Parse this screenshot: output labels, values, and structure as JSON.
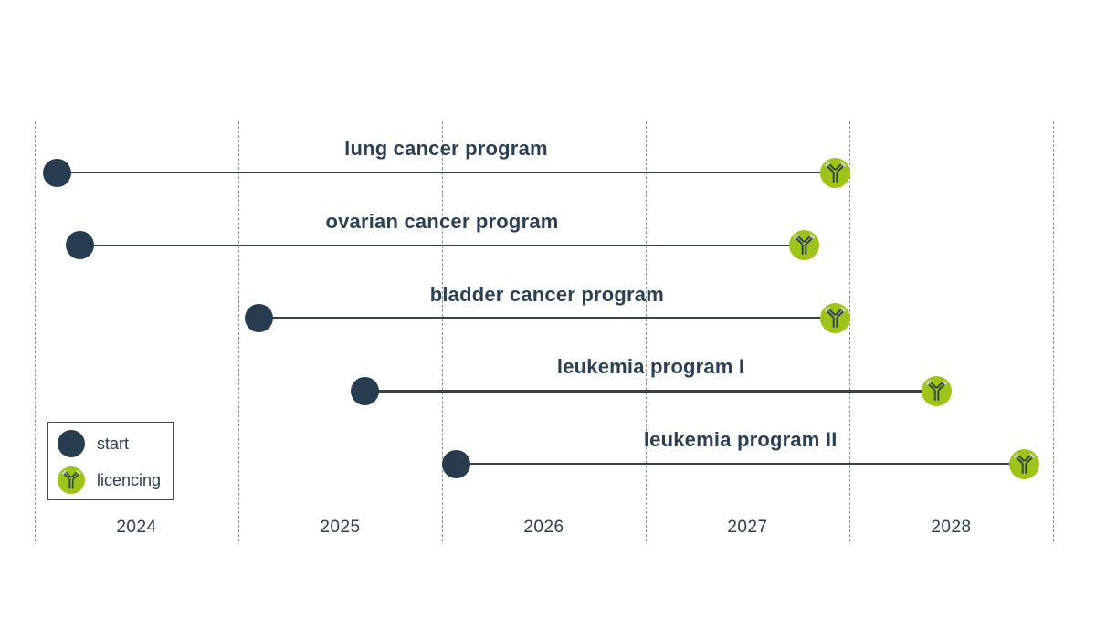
{
  "colors": {
    "navy": "#283c50",
    "line": "#2e4257",
    "green": "#9ec417",
    "grid": "#8c8c8c",
    "text": "#2b4055"
  },
  "chart_data": {
    "type": "gantt-timeline",
    "title": "",
    "x_axis": {
      "tick_labels": [
        "2024",
        "2025",
        "2026",
        "2027",
        "2028"
      ],
      "gridline_years": [
        2024,
        2025,
        2026,
        2027,
        2028,
        2029
      ],
      "range": [
        2024,
        2029
      ],
      "grid": "dashed-vertical"
    },
    "programs": [
      {
        "label": "lung cancer program",
        "start_year": 2024.11,
        "end_year": 2027.93
      },
      {
        "label": "ovarian cancer program",
        "start_year": 2024.22,
        "end_year": 2027.78
      },
      {
        "label": "bladder cancer program",
        "start_year": 2025.1,
        "end_year": 2027.93
      },
      {
        "label": "leukemia program I",
        "start_year": 2025.62,
        "end_year": 2028.43
      },
      {
        "label": "leukemia program II",
        "start_year": 2026.07,
        "end_year": 2028.86
      }
    ],
    "legend": [
      {
        "label": "start",
        "marker": "navy-circle"
      },
      {
        "label": "licencing",
        "marker": "green-antibody-circle"
      }
    ],
    "legend_position": "bottom-left"
  }
}
